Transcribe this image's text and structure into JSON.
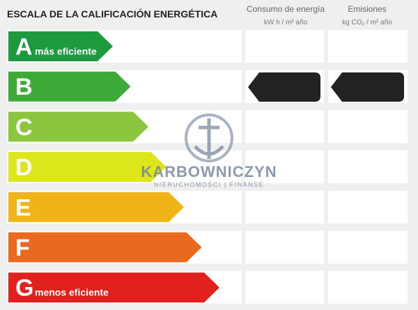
{
  "header": {
    "title": "ESCALA DE LA CALIFICACIÓN ENERGÉTICA",
    "columns": [
      {
        "title": "Consumo de energía",
        "unit": "kW h / m² año"
      },
      {
        "title": "Emisiones",
        "unit": "kg CO₂ / m² año"
      }
    ]
  },
  "rows": [
    {
      "letter": "A",
      "label": "más eficiente"
    },
    {
      "letter": "B"
    },
    {
      "letter": "C"
    },
    {
      "letter": "D"
    },
    {
      "letter": "E"
    },
    {
      "letter": "F"
    },
    {
      "letter": "G",
      "label": "menos eficiente"
    }
  ],
  "watermark": {
    "name": "KARBOWNICZYN",
    "tagline": "NIERUCHOMOŚCI | FINANSE"
  }
}
